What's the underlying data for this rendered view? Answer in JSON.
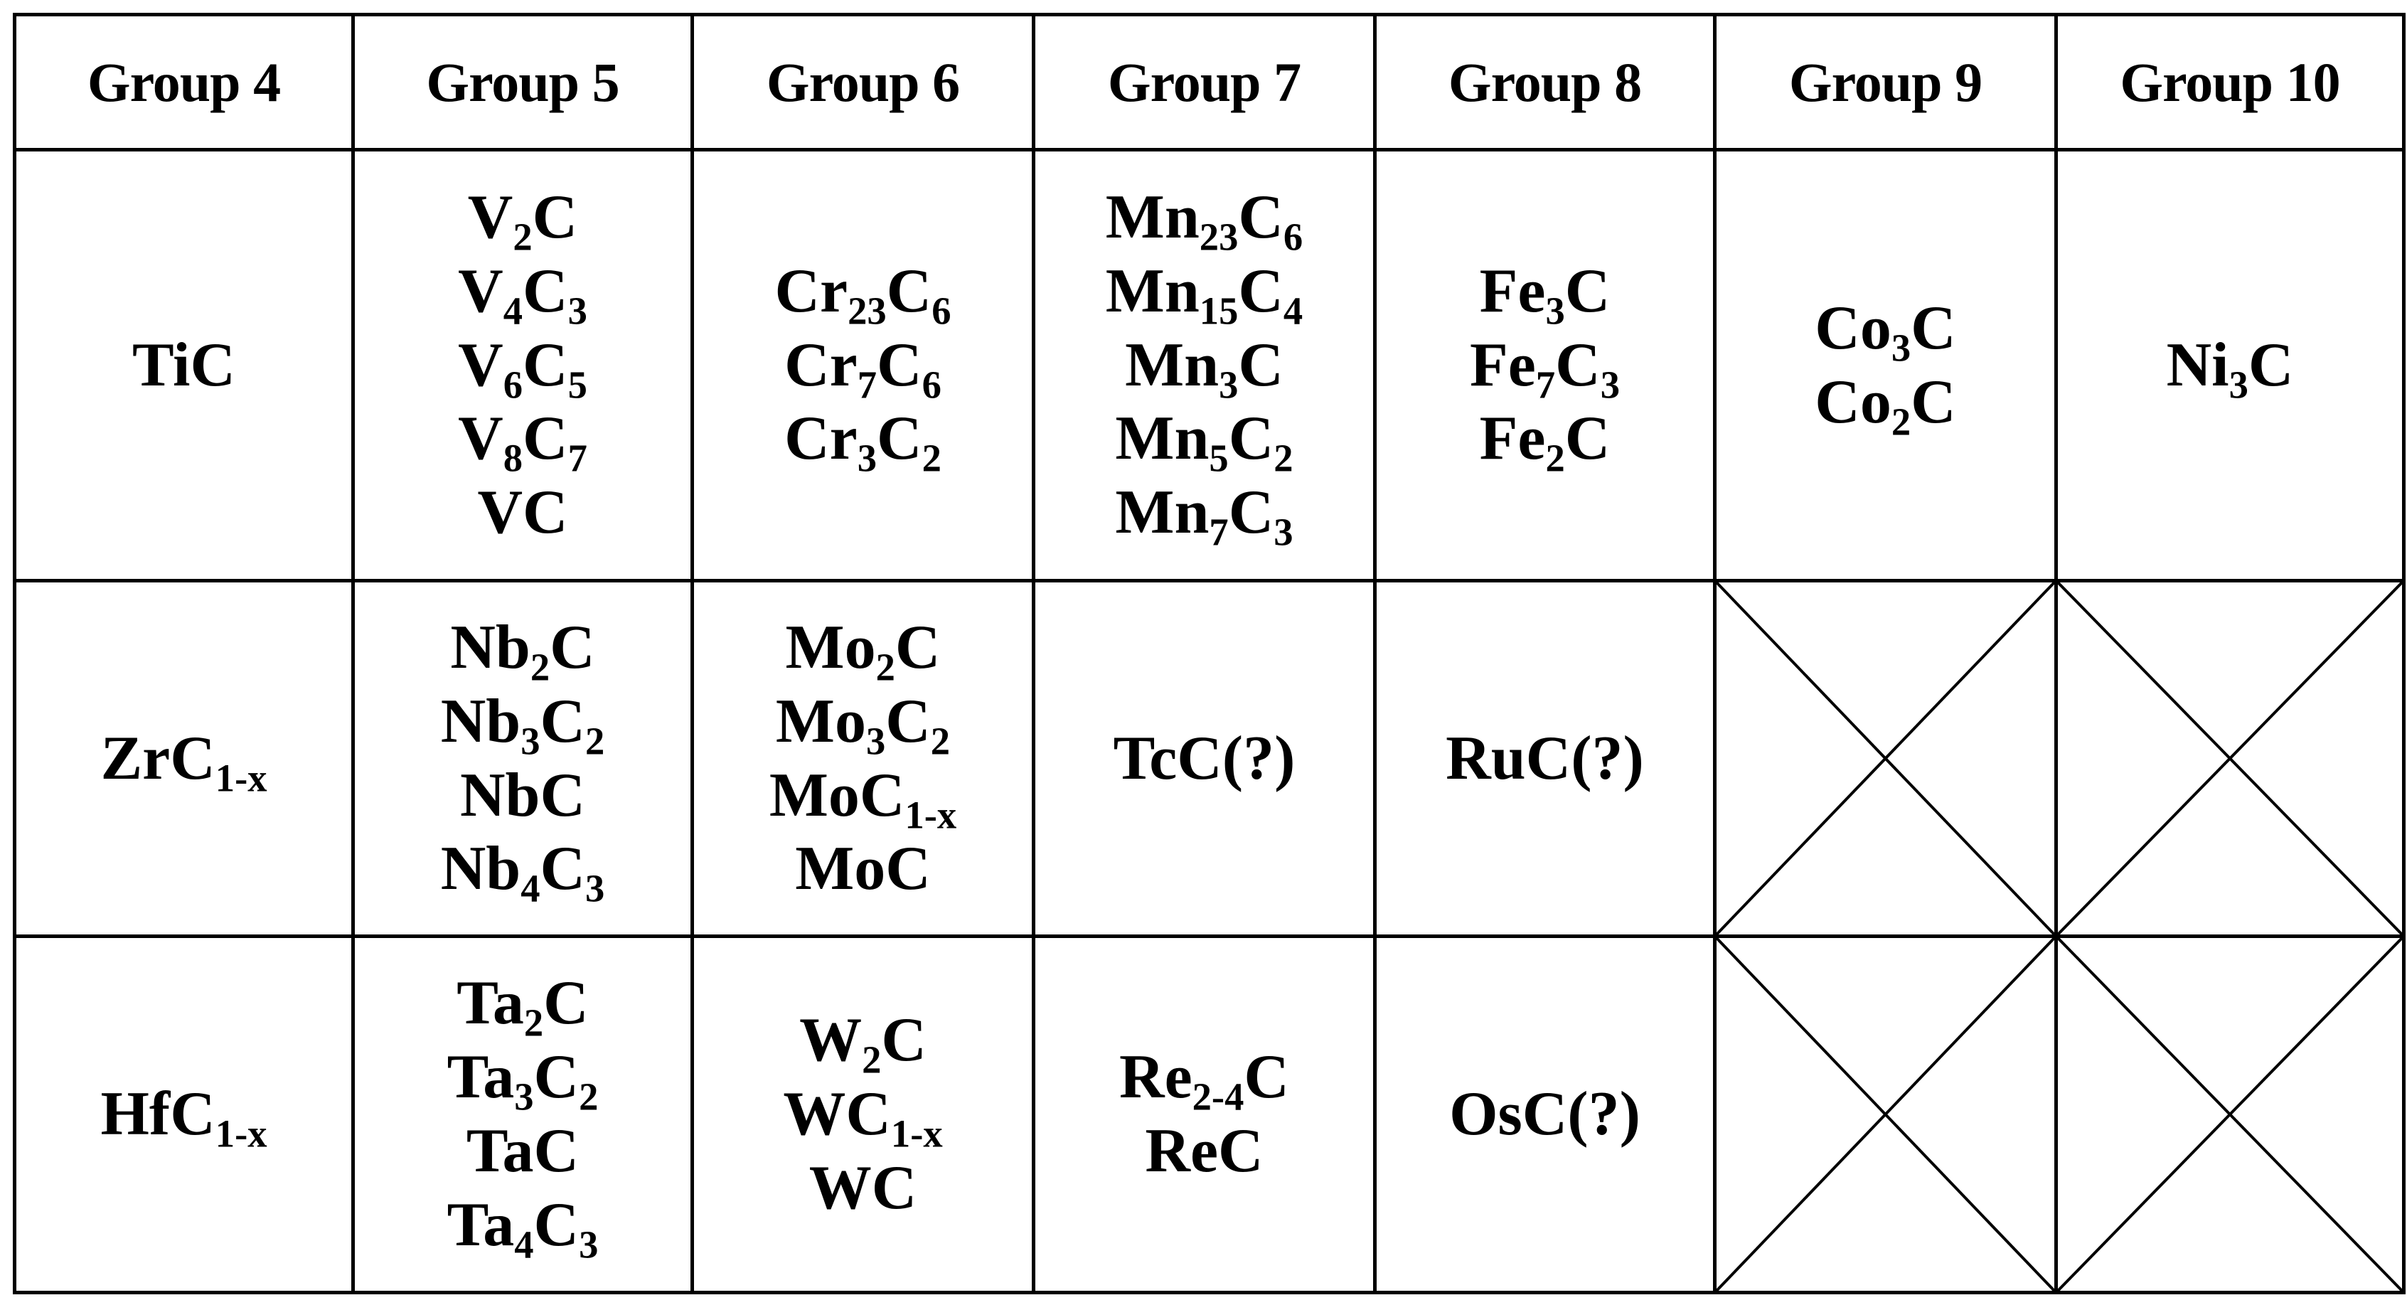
{
  "table": {
    "headers": [
      "Group 4",
      "Group 5",
      "Group 6",
      "Group 7",
      "Group 8",
      "Group 9",
      "Group 10"
    ],
    "rows": [
      {
        "cells": [
          {
            "formulas": [
              [
                [
                  "Ti",
                  ""
                ],
                [
                  "C",
                  ""
                ]
              ]
            ]
          },
          {
            "formulas": [
              [
                [
                  "V",
                  "2"
                ],
                [
                  "C",
                  ""
                ]
              ],
              [
                [
                  "V",
                  "4"
                ],
                [
                  "C",
                  "3"
                ]
              ],
              [
                [
                  "V",
                  "6"
                ],
                [
                  "C",
                  "5"
                ]
              ],
              [
                [
                  "V",
                  "8"
                ],
                [
                  "C",
                  "7"
                ]
              ],
              [
                [
                  "VC",
                  ""
                ]
              ]
            ]
          },
          {
            "formulas": [
              [
                [
                  "Cr",
                  "23"
                ],
                [
                  "C",
                  "6"
                ]
              ],
              [
                [
                  "Cr",
                  "7"
                ],
                [
                  "C",
                  "6"
                ]
              ],
              [
                [
                  "Cr",
                  "3"
                ],
                [
                  "C",
                  "2"
                ]
              ]
            ]
          },
          {
            "formulas": [
              [
                [
                  "Mn",
                  "23"
                ],
                [
                  "C",
                  "6"
                ]
              ],
              [
                [
                  "Mn",
                  "15"
                ],
                [
                  "C",
                  "4"
                ]
              ],
              [
                [
                  "Mn",
                  "3"
                ],
                [
                  "C",
                  ""
                ]
              ],
              [
                [
                  "Mn",
                  "5"
                ],
                [
                  "C",
                  "2"
                ]
              ],
              [
                [
                  "Mn",
                  "7"
                ],
                [
                  "C",
                  "3"
                ]
              ]
            ]
          },
          {
            "formulas": [
              [
                [
                  "Fe",
                  "3"
                ],
                [
                  "C",
                  ""
                ]
              ],
              [
                [
                  "Fe",
                  "7"
                ],
                [
                  "C",
                  "3"
                ]
              ],
              [
                [
                  "Fe",
                  "2"
                ],
                [
                  "C",
                  ""
                ]
              ]
            ]
          },
          {
            "formulas": [
              [
                [
                  "Co",
                  "3"
                ],
                [
                  "C",
                  ""
                ]
              ],
              [
                [
                  "Co",
                  "2"
                ],
                [
                  "C",
                  ""
                ]
              ]
            ]
          },
          {
            "formulas": [
              [
                [
                  "Ni",
                  "3"
                ],
                [
                  "C",
                  ""
                ]
              ]
            ]
          }
        ]
      },
      {
        "cells": [
          {
            "formulas": [
              [
                [
                  "ZrC",
                  "1-x"
                ]
              ]
            ]
          },
          {
            "formulas": [
              [
                [
                  "Nb",
                  "2"
                ],
                [
                  "C",
                  ""
                ]
              ],
              [
                [
                  "Nb",
                  "3"
                ],
                [
                  "C",
                  "2"
                ]
              ],
              [
                [
                  "NbC",
                  ""
                ]
              ],
              [
                [
                  "Nb",
                  "4"
                ],
                [
                  "C",
                  "3"
                ]
              ]
            ]
          },
          {
            "formulas": [
              [
                [
                  "Mo",
                  "2"
                ],
                [
                  "C",
                  ""
                ]
              ],
              [
                [
                  "Mo",
                  "3"
                ],
                [
                  "C",
                  "2"
                ]
              ],
              [
                [
                  "MoC",
                  "1-x"
                ]
              ],
              [
                [
                  "MoC",
                  ""
                ]
              ]
            ]
          },
          {
            "formulas": [
              [
                [
                  "TcC(?)",
                  ""
                ]
              ]
            ]
          },
          {
            "formulas": [
              [
                [
                  "RuC(?)",
                  ""
                ]
              ]
            ]
          },
          {
            "empty": true
          },
          {
            "empty": true
          }
        ]
      },
      {
        "cells": [
          {
            "formulas": [
              [
                [
                  "HfC",
                  "1-x"
                ]
              ]
            ]
          },
          {
            "formulas": [
              [
                [
                  "Ta",
                  "2"
                ],
                [
                  "C",
                  ""
                ]
              ],
              [
                [
                  "Ta",
                  "3"
                ],
                [
                  "C",
                  "2"
                ]
              ],
              [
                [
                  "TaC",
                  ""
                ]
              ],
              [
                [
                  "Ta",
                  "4"
                ],
                [
                  "C",
                  "3"
                ]
              ]
            ]
          },
          {
            "formulas": [
              [
                [
                  "W",
                  "2"
                ],
                [
                  "C",
                  ""
                ]
              ],
              [
                [
                  "WC",
                  "1-x"
                ]
              ],
              [
                [
                  "WC",
                  ""
                ]
              ]
            ]
          },
          {
            "formulas": [
              [
                [
                  "Re",
                  "2-4"
                ],
                [
                  "C",
                  ""
                ]
              ],
              [
                [
                  "ReC",
                  ""
                ]
              ]
            ]
          },
          {
            "formulas": [
              [
                [
                  "OsC(?)",
                  ""
                ]
              ]
            ]
          },
          {
            "empty": true
          },
          {
            "empty": true
          }
        ]
      }
    ]
  }
}
